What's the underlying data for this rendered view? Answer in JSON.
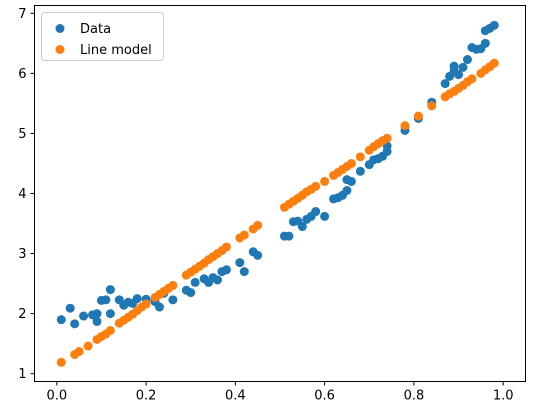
{
  "chart_data": {
    "type": "scatter",
    "title": "",
    "xlabel": "",
    "ylabel": "",
    "xlim": [
      -0.05,
      1.05
    ],
    "ylim": [
      0.87,
      7.13
    ],
    "grid": false,
    "legend_position": "top-left",
    "x_ticks": [
      0.0,
      0.2,
      0.4,
      0.6,
      0.8,
      1.0
    ],
    "x_tick_labels": [
      "0.0",
      "0.2",
      "0.4",
      "0.6",
      "0.8",
      "1.0"
    ],
    "y_ticks": [
      1,
      2,
      3,
      4,
      5,
      6,
      7
    ],
    "y_tick_labels": [
      "1",
      "2",
      "3",
      "4",
      "5",
      "6",
      "7"
    ],
    "series": [
      {
        "name": "Data",
        "color": "#1f77b4",
        "points": [
          [
            0.01,
            1.9
          ],
          [
            0.03,
            2.09
          ],
          [
            0.04,
            1.83
          ],
          [
            0.06,
            1.96
          ],
          [
            0.08,
            1.98
          ],
          [
            0.09,
            2.0
          ],
          [
            0.09,
            1.87
          ],
          [
            0.1,
            2.22
          ],
          [
            0.11,
            2.23
          ],
          [
            0.12,
            2.4
          ],
          [
            0.12,
            2.0
          ],
          [
            0.14,
            2.23
          ],
          [
            0.15,
            2.14
          ],
          [
            0.16,
            2.19
          ],
          [
            0.17,
            2.17
          ],
          [
            0.18,
            2.25
          ],
          [
            0.2,
            2.24
          ],
          [
            0.22,
            2.2
          ],
          [
            0.23,
            2.11
          ],
          [
            0.24,
            2.34
          ],
          [
            0.26,
            2.23
          ],
          [
            0.29,
            2.39
          ],
          [
            0.3,
            2.35
          ],
          [
            0.31,
            2.52
          ],
          [
            0.33,
            2.58
          ],
          [
            0.34,
            2.52
          ],
          [
            0.35,
            2.6
          ],
          [
            0.36,
            2.56
          ],
          [
            0.37,
            2.7
          ],
          [
            0.38,
            2.73
          ],
          [
            0.41,
            2.85
          ],
          [
            0.42,
            2.7
          ],
          [
            0.44,
            3.03
          ],
          [
            0.45,
            2.97
          ],
          [
            0.51,
            3.29
          ],
          [
            0.52,
            3.29
          ],
          [
            0.53,
            3.53
          ],
          [
            0.54,
            3.54
          ],
          [
            0.55,
            3.45
          ],
          [
            0.56,
            3.57
          ],
          [
            0.57,
            3.62
          ],
          [
            0.58,
            3.7
          ],
          [
            0.6,
            3.62
          ],
          [
            0.62,
            3.91
          ],
          [
            0.63,
            3.93
          ],
          [
            0.64,
            3.97
          ],
          [
            0.65,
            4.05
          ],
          [
            0.65,
            4.23
          ],
          [
            0.66,
            4.2
          ],
          [
            0.68,
            4.37
          ],
          [
            0.7,
            4.48
          ],
          [
            0.71,
            4.56
          ],
          [
            0.72,
            4.58
          ],
          [
            0.73,
            4.62
          ],
          [
            0.74,
            4.7
          ],
          [
            0.74,
            4.79
          ],
          [
            0.78,
            5.05
          ],
          [
            0.81,
            5.25
          ],
          [
            0.84,
            5.52
          ],
          [
            0.87,
            5.83
          ],
          [
            0.88,
            5.95
          ],
          [
            0.89,
            6.04
          ],
          [
            0.89,
            6.12
          ],
          [
            0.9,
            5.98
          ],
          [
            0.91,
            6.1
          ],
          [
            0.92,
            6.23
          ],
          [
            0.93,
            6.43
          ],
          [
            0.94,
            6.4
          ],
          [
            0.95,
            6.41
          ],
          [
            0.96,
            6.5
          ],
          [
            0.96,
            6.71
          ],
          [
            0.97,
            6.75
          ],
          [
            0.98,
            6.8
          ]
        ]
      },
      {
        "name": "Line model",
        "color": "#ff7f0e",
        "points": [
          [
            0.01,
            1.19
          ],
          [
            0.04,
            1.32
          ],
          [
            0.05,
            1.37
          ],
          [
            0.07,
            1.46
          ],
          [
            0.09,
            1.57
          ],
          [
            0.1,
            1.62
          ],
          [
            0.11,
            1.66
          ],
          [
            0.12,
            1.72
          ],
          [
            0.14,
            1.84
          ],
          [
            0.15,
            1.89
          ],
          [
            0.16,
            1.94
          ],
          [
            0.17,
            1.99
          ],
          [
            0.18,
            2.05
          ],
          [
            0.19,
            2.11
          ],
          [
            0.2,
            2.16
          ],
          [
            0.22,
            2.27
          ],
          [
            0.23,
            2.32
          ],
          [
            0.24,
            2.37
          ],
          [
            0.25,
            2.42
          ],
          [
            0.26,
            2.47
          ],
          [
            0.29,
            2.64
          ],
          [
            0.3,
            2.69
          ],
          [
            0.31,
            2.74
          ],
          [
            0.32,
            2.79
          ],
          [
            0.33,
            2.84
          ],
          [
            0.34,
            2.9
          ],
          [
            0.35,
            2.95
          ],
          [
            0.36,
            3.0
          ],
          [
            0.37,
            3.05
          ],
          [
            0.38,
            3.11
          ],
          [
            0.41,
            3.26
          ],
          [
            0.42,
            3.31
          ],
          [
            0.44,
            3.41
          ],
          [
            0.45,
            3.47
          ],
          [
            0.51,
            3.77
          ],
          [
            0.52,
            3.82
          ],
          [
            0.53,
            3.87
          ],
          [
            0.54,
            3.92
          ],
          [
            0.55,
            3.97
          ],
          [
            0.56,
            4.03
          ],
          [
            0.57,
            4.07
          ],
          [
            0.58,
            4.12
          ],
          [
            0.6,
            4.2
          ],
          [
            0.62,
            4.3
          ],
          [
            0.63,
            4.35
          ],
          [
            0.64,
            4.4
          ],
          [
            0.65,
            4.45
          ],
          [
            0.66,
            4.5
          ],
          [
            0.68,
            4.61
          ],
          [
            0.7,
            4.72
          ],
          [
            0.71,
            4.78
          ],
          [
            0.72,
            4.83
          ],
          [
            0.73,
            4.88
          ],
          [
            0.74,
            4.92
          ],
          [
            0.78,
            5.13
          ],
          [
            0.81,
            5.29
          ],
          [
            0.84,
            5.46
          ],
          [
            0.87,
            5.61
          ],
          [
            0.88,
            5.66
          ],
          [
            0.89,
            5.7
          ],
          [
            0.9,
            5.75
          ],
          [
            0.91,
            5.8
          ],
          [
            0.92,
            5.86
          ],
          [
            0.93,
            5.91
          ],
          [
            0.95,
            6.0
          ],
          [
            0.96,
            6.06
          ],
          [
            0.97,
            6.11
          ],
          [
            0.98,
            6.17
          ]
        ]
      }
    ]
  }
}
